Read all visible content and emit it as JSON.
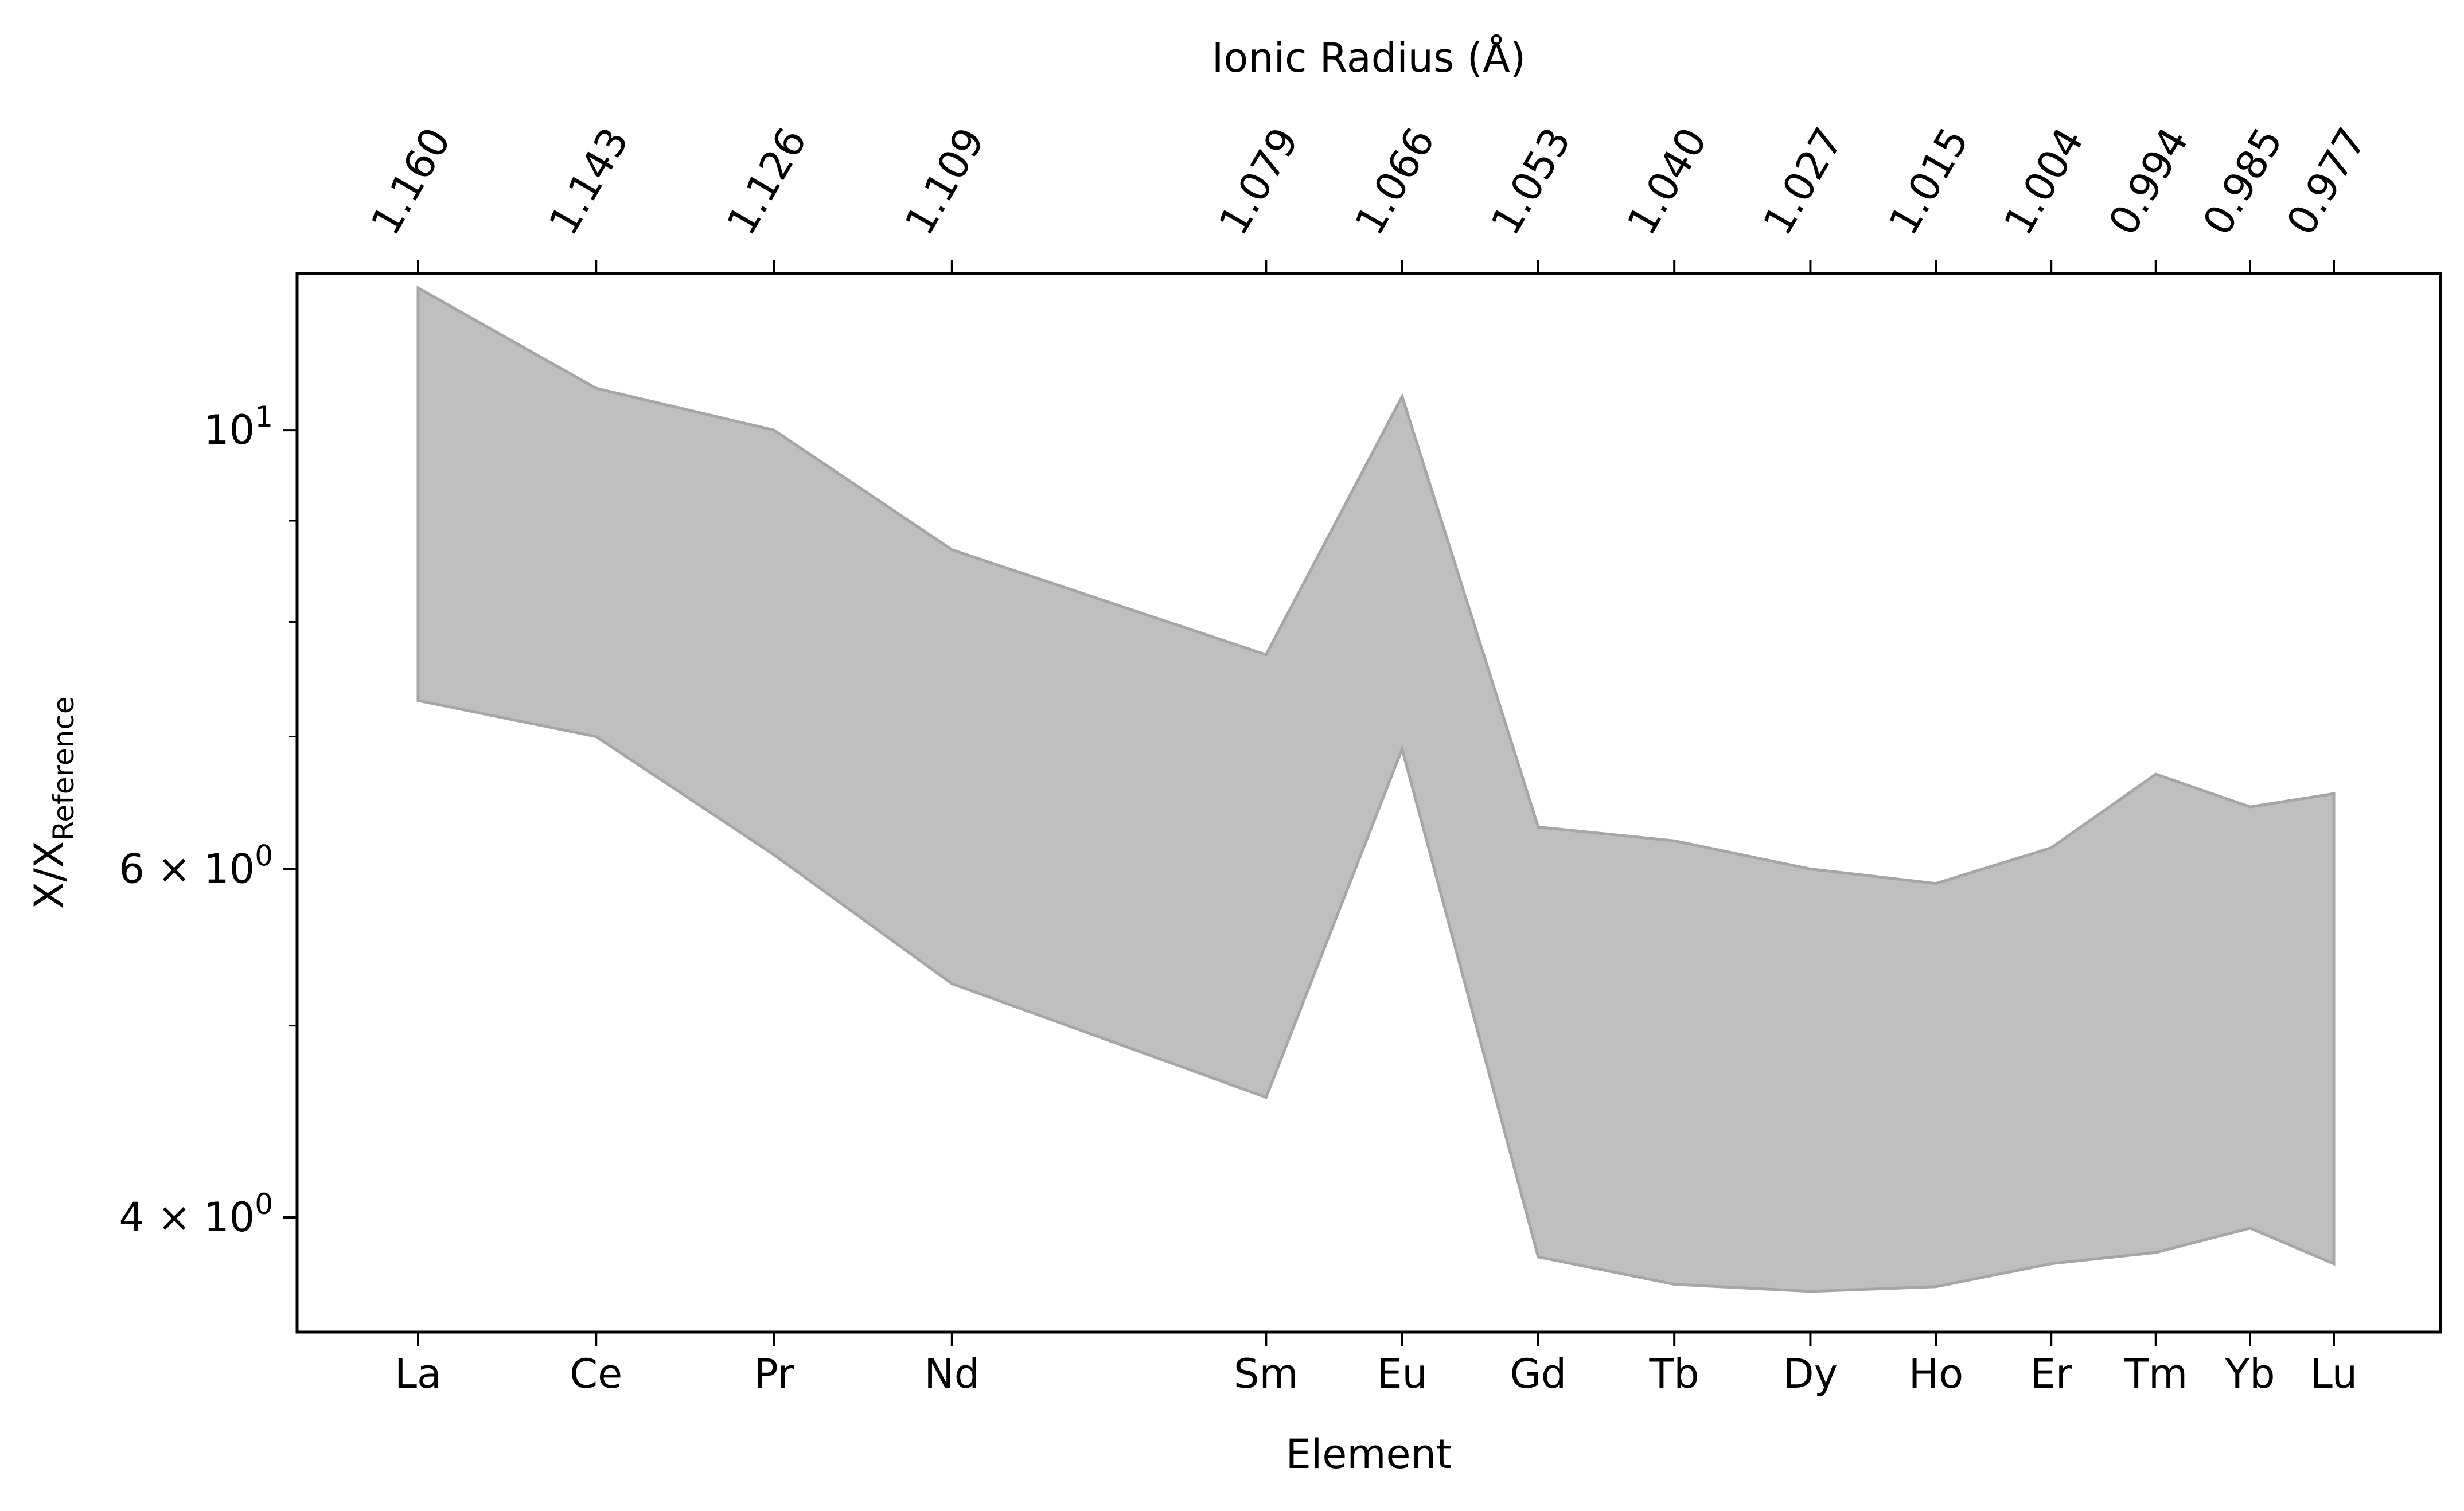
{
  "chart_data": {
    "type": "area",
    "top_axis_label": "Ionic Radius (Å)",
    "xlabel": "Element",
    "ylabel": "X/X",
    "ylabel_subscript": "Reference",
    "y_scale": "log",
    "ylim": [
      3.5,
      12.0
    ],
    "grid": false,
    "legend": "none",
    "categories": [
      "La",
      "Ce",
      "Pr",
      "Nd",
      "Sm",
      "Eu",
      "Gd",
      "Tb",
      "Dy",
      "Ho",
      "Er",
      "Tm",
      "Yb",
      "Lu"
    ],
    "ionic_radius": [
      1.16,
      1.143,
      1.126,
      1.109,
      1.079,
      1.066,
      1.053,
      1.04,
      1.027,
      1.015,
      1.004,
      0.994,
      0.985,
      0.977
    ],
    "ionic_radius_labels": [
      "1.160",
      "1.143",
      "1.126",
      "1.109",
      "1.079",
      "1.066",
      "1.053",
      "1.040",
      "1.027",
      "1.015",
      "1.004",
      "0.994",
      "0.985",
      "0.977"
    ],
    "series": [
      {
        "values": [
          11.8,
          10.5,
          10.0,
          8.7,
          7.7,
          10.4,
          6.3,
          6.2,
          6.0,
          5.9,
          6.15,
          6.7,
          6.45,
          6.55
        ]
      },
      {
        "values": [
          7.3,
          7.0,
          6.1,
          5.25,
          4.6,
          6.9,
          3.82,
          3.7,
          3.67,
          3.69,
          3.79,
          3.84,
          3.95,
          3.79
        ]
      }
    ],
    "y_ticks": [
      {
        "value": 4,
        "mantissa": "4",
        "exponent": "0"
      },
      {
        "value": 6,
        "mantissa": "6",
        "exponent": "0"
      },
      {
        "value": 10,
        "mantissa": "10",
        "exponent": "1"
      }
    ],
    "y_minor_ticks": [
      5,
      7,
      8,
      9
    ],
    "colors": {
      "fill": "#bfbfbf",
      "edge": "#a6a6a6",
      "axes": "#000000"
    }
  }
}
